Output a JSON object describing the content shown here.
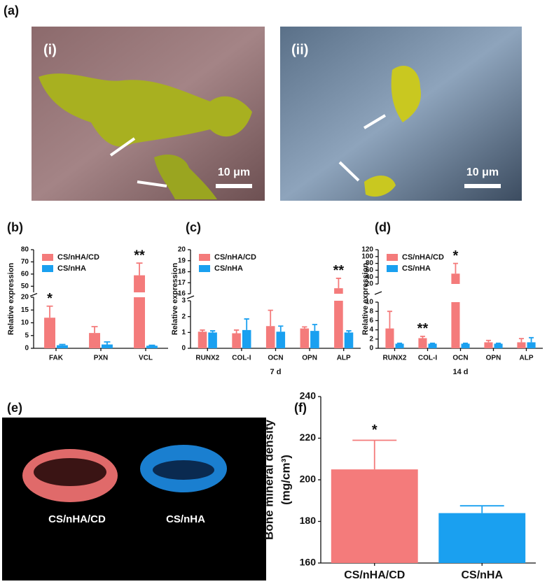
{
  "panel_labels": [
    "(a)",
    "(b)",
    "(c)",
    "(d)",
    "(e)",
    "(f)"
  ],
  "images": {
    "first": "(i)",
    "second": "(ii)",
    "scale_bar": "10 μm",
    "scan_labels": [
      "CS/nHA/CD",
      "CS/nHA"
    ]
  },
  "chart_data": [
    {
      "type": "bar",
      "ylabel": "Relative expression",
      "legend": "upper left",
      "categories": [
        "FAK",
        "PXN",
        "VCL"
      ],
      "series": [
        {
          "name": "CS/nHA/CD",
          "color": "#f47b7b",
          "values": [
            12,
            6,
            59
          ],
          "errors": [
            4.5,
            2.5,
            10
          ]
        },
        {
          "name": "CS/nHA",
          "color": "#1aa0f0",
          "values": [
            1.2,
            1.5,
            1
          ],
          "errors": [
            0.3,
            1,
            0.2
          ]
        }
      ],
      "y_segments": [
        {
          "ylim": [
            0,
            20
          ],
          "yticks": [
            0,
            5,
            10,
            15,
            20
          ]
        },
        {
          "ylim": [
            45,
            80
          ],
          "yticks": [
            50,
            60,
            70,
            80
          ]
        }
      ],
      "annotations": [
        {
          "text": "*",
          "category": "FAK"
        },
        {
          "text": "**",
          "category": "VCL"
        }
      ]
    },
    {
      "type": "bar",
      "ylabel": "Relative expression",
      "xlabel": "7 d",
      "legend": "upper left",
      "categories": [
        "RUNX2",
        "COL-I",
        "OCN",
        "OPN",
        "ALP"
      ],
      "series": [
        {
          "name": "CS/nHA/CD",
          "color": "#f47b7b",
          "values": [
            1.05,
            0.95,
            1.4,
            1.25,
            16.5
          ],
          "errors": [
            0.1,
            0.2,
            1,
            0.1,
            0.9
          ]
        },
        {
          "name": "CS/nHA",
          "color": "#1aa0f0",
          "values": [
            1,
            1.15,
            1.05,
            1.1,
            1
          ],
          "errors": [
            0.1,
            0.7,
            0.35,
            0.4,
            0.1
          ]
        }
      ],
      "y_segments": [
        {
          "ylim": [
            0,
            3
          ],
          "yticks": [
            0,
            1,
            2,
            3
          ]
        },
        {
          "ylim": [
            16,
            20
          ],
          "yticks": [
            16,
            17,
            18,
            19,
            20
          ]
        }
      ],
      "annotations": [
        {
          "text": "**",
          "category": "ALP"
        }
      ]
    },
    {
      "type": "bar",
      "ylabel": "Relative expression",
      "xlabel": "14 d",
      "legend": "upper left",
      "categories": [
        "RUNX2",
        "COL-I",
        "OCN",
        "OPN",
        "ALP"
      ],
      "series": [
        {
          "name": "CS/nHA/CD",
          "color": "#f47b7b",
          "values": [
            4.3,
            2.2,
            50,
            1.3,
            1.3
          ],
          "errors": [
            3.7,
            0.4,
            30,
            0.4,
            0.8
          ]
        },
        {
          "name": "CS/nHA",
          "color": "#1aa0f0",
          "values": [
            1,
            1,
            1,
            1,
            1.3
          ],
          "errors": [
            0.1,
            0.1,
            0.1,
            0.1,
            1
          ]
        }
      ],
      "y_segments": [
        {
          "ylim": [
            0,
            10
          ],
          "yticks": [
            0,
            2,
            4,
            6,
            8,
            10
          ]
        },
        {
          "ylim": [
            20,
            120
          ],
          "yticks": [
            20,
            40,
            60,
            80,
            100,
            120
          ]
        }
      ],
      "annotations": [
        {
          "text": "**",
          "category": "COL-I"
        },
        {
          "text": "*",
          "category": "OCN"
        }
      ]
    },
    {
      "type": "bar",
      "ylabel": "Bone mineral density",
      "yunit": "(mg/cm³)",
      "categories": [
        "CS/nHA/CD",
        "CS/nHA"
      ],
      "series": [
        {
          "colors": [
            "#f47b7b",
            "#1aa0f0"
          ],
          "values": [
            205,
            184
          ],
          "errors": [
            14,
            3.5
          ]
        }
      ],
      "ylim": [
        160,
        240
      ],
      "yticks": [
        160,
        180,
        200,
        220,
        240
      ],
      "annotations": [
        {
          "text": "*",
          "category": "CS/nHA/CD"
        }
      ]
    }
  ]
}
